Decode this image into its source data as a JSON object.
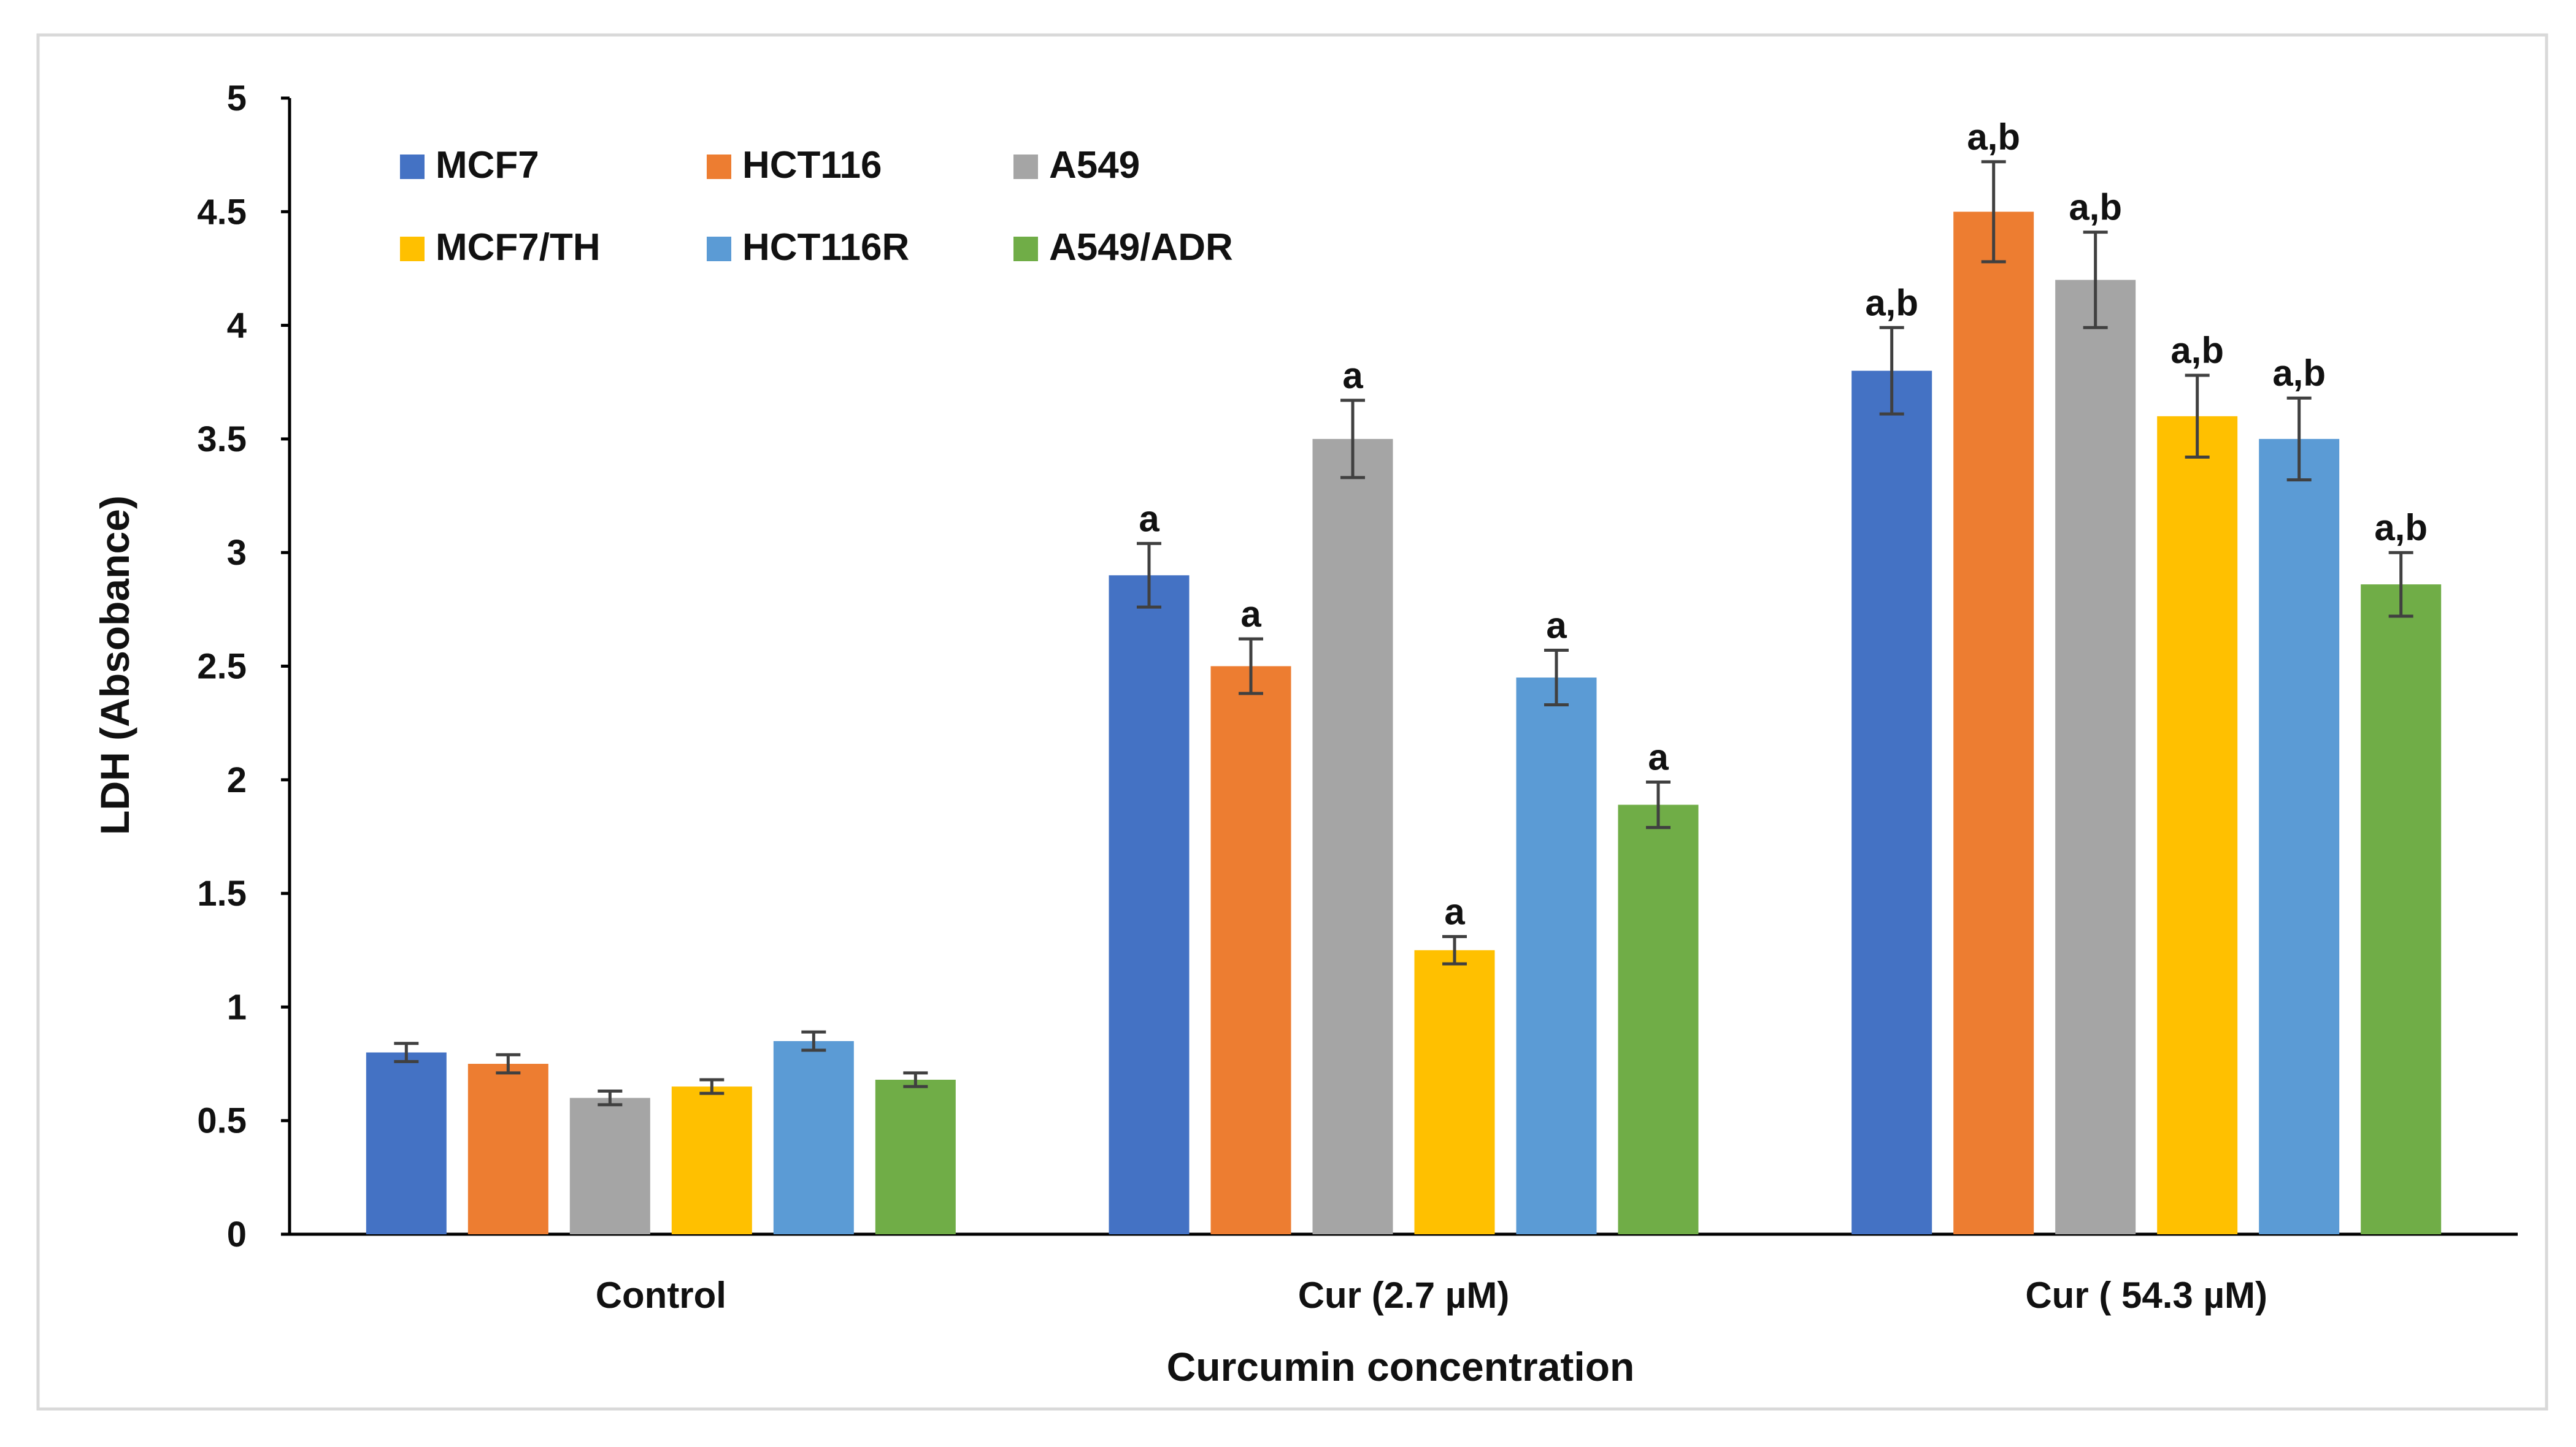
{
  "chart_data": {
    "type": "bar",
    "title": "",
    "xlabel": "Curcumin concentration",
    "ylabel": "LDH (Absobance)",
    "ylim": [
      0,
      5
    ],
    "yticks": [
      "0",
      "0.5",
      "1",
      "1.5",
      "2",
      "2.5",
      "3",
      "3.5",
      "4",
      "4.5",
      "5"
    ],
    "grid": false,
    "legend_position": "top-left",
    "categories": [
      "Control",
      "Cur (2.7  µM)",
      "Cur ( 54.3 µM)"
    ],
    "series": [
      {
        "name": "MCF7",
        "color": "#4472C4",
        "values": [
          0.8,
          2.9,
          3.8
        ],
        "errors": [
          0.04,
          0.14,
          0.19
        ],
        "labels": [
          "",
          "a",
          "a,b"
        ]
      },
      {
        "name": "HCT116",
        "color": "#ED7D31",
        "values": [
          0.75,
          2.5,
          4.5
        ],
        "errors": [
          0.04,
          0.12,
          0.22
        ],
        "labels": [
          "",
          "a",
          "a,b"
        ]
      },
      {
        "name": "A549",
        "color": "#A5A5A5",
        "values": [
          0.6,
          3.5,
          4.2
        ],
        "errors": [
          0.03,
          0.17,
          0.21
        ],
        "labels": [
          "",
          "a",
          "a,b"
        ]
      },
      {
        "name": "MCF7/TH",
        "color": "#FFC000",
        "values": [
          0.65,
          1.25,
          3.6
        ],
        "errors": [
          0.03,
          0.06,
          0.18
        ],
        "labels": [
          "",
          "a",
          "a,b"
        ]
      },
      {
        "name": "HCT116R",
        "color": "#5B9BD5",
        "values": [
          0.85,
          2.45,
          3.5
        ],
        "errors": [
          0.04,
          0.12,
          0.18
        ],
        "labels": [
          "",
          "a",
          "a,b"
        ]
      },
      {
        "name": "A549/ADR",
        "color": "#70AD47",
        "values": [
          0.68,
          1.89,
          2.86
        ],
        "errors": [
          0.03,
          0.1,
          0.14
        ],
        "labels": [
          "",
          "a",
          "a,b"
        ]
      }
    ]
  }
}
